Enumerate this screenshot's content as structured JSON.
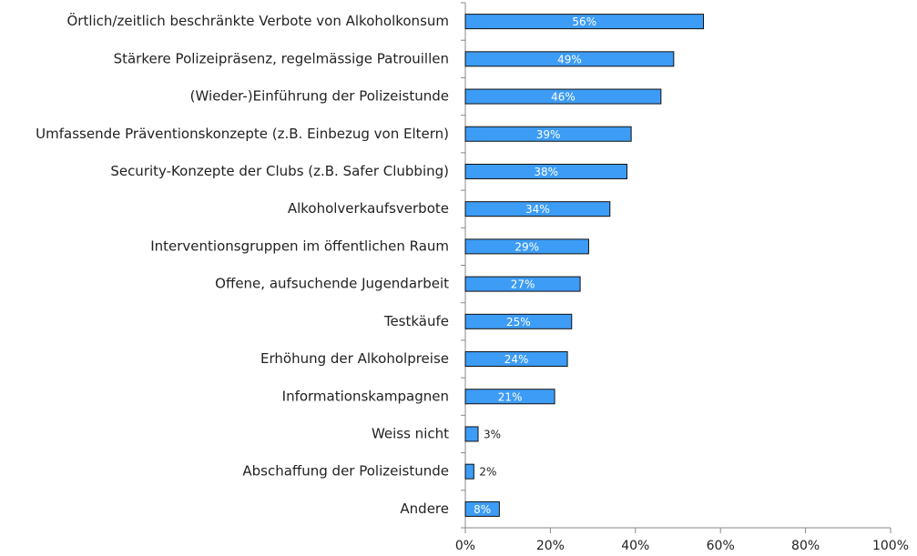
{
  "chart_data": {
    "type": "bar",
    "orientation": "horizontal",
    "categories": [
      "Örtlich/zeitlich beschränkte Verbote von Alkoholkonsum",
      "Stärkere Polizeipräsenz, regelmässige Patrouillen",
      "(Wieder-)Einführung der Polizeistunde",
      "Umfassende Präventionskonzepte (z.B. Einbezug von Eltern)",
      "Security-Konzepte der Clubs (z.B. Safer Clubbing)",
      "Alkoholverkaufsverbote",
      "Interventionsgruppen im öffentlichen Raum",
      "Offene, aufsuchende Jugendarbeit",
      "Testkäufe",
      "Erhöhung der Alkoholpreise",
      "Informationskampagnen",
      "Weiss nicht",
      "Abschaffung der Polizeistunde",
      "Andere"
    ],
    "values": [
      56,
      49,
      46,
      39,
      38,
      34,
      29,
      27,
      25,
      24,
      21,
      3,
      2,
      8
    ],
    "value_labels": [
      "56%",
      "49%",
      "46%",
      "39%",
      "38%",
      "34%",
      "29%",
      "27%",
      "25%",
      "24%",
      "21%",
      "3%",
      "2%",
      "8%"
    ],
    "color": "#3d9cf5",
    "xlim": [
      0,
      100
    ],
    "xticks": [
      {
        "value": 0,
        "label": "0%"
      },
      {
        "value": 20,
        "label": "20%"
      },
      {
        "value": 40,
        "label": "40%"
      },
      {
        "value": 60,
        "label": "60%"
      },
      {
        "value": 80,
        "label": "80%"
      },
      {
        "value": 100,
        "label": "100%"
      }
    ],
    "grid": false
  }
}
